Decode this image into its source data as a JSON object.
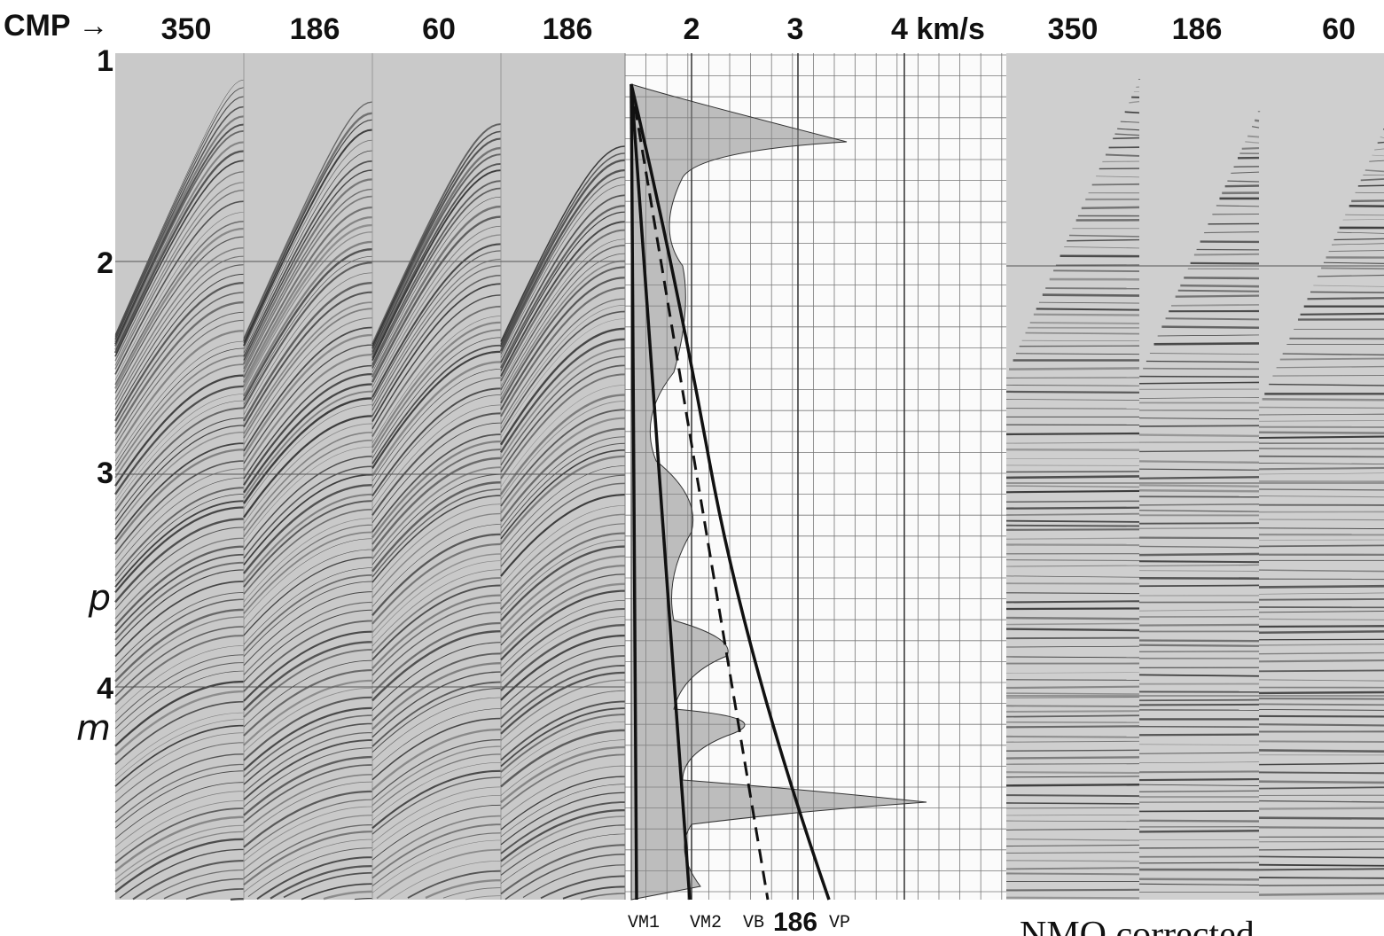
{
  "header": {
    "cmp_label": "CMP →",
    "left_panels": [
      "350",
      "186",
      "60",
      "186"
    ],
    "velocity_ticks": [
      "2",
      "3",
      "4 km/s"
    ],
    "right_panels": [
      "350",
      "186",
      "60"
    ]
  },
  "time_axis": [
    "1",
    "2",
    "3",
    "p",
    "4",
    "m"
  ],
  "curve_labels": [
    "VM1",
    "VM2",
    "VB"
  ],
  "cmp_number": "186",
  "vp_label": "VP",
  "caption": "NMO corrected"
}
